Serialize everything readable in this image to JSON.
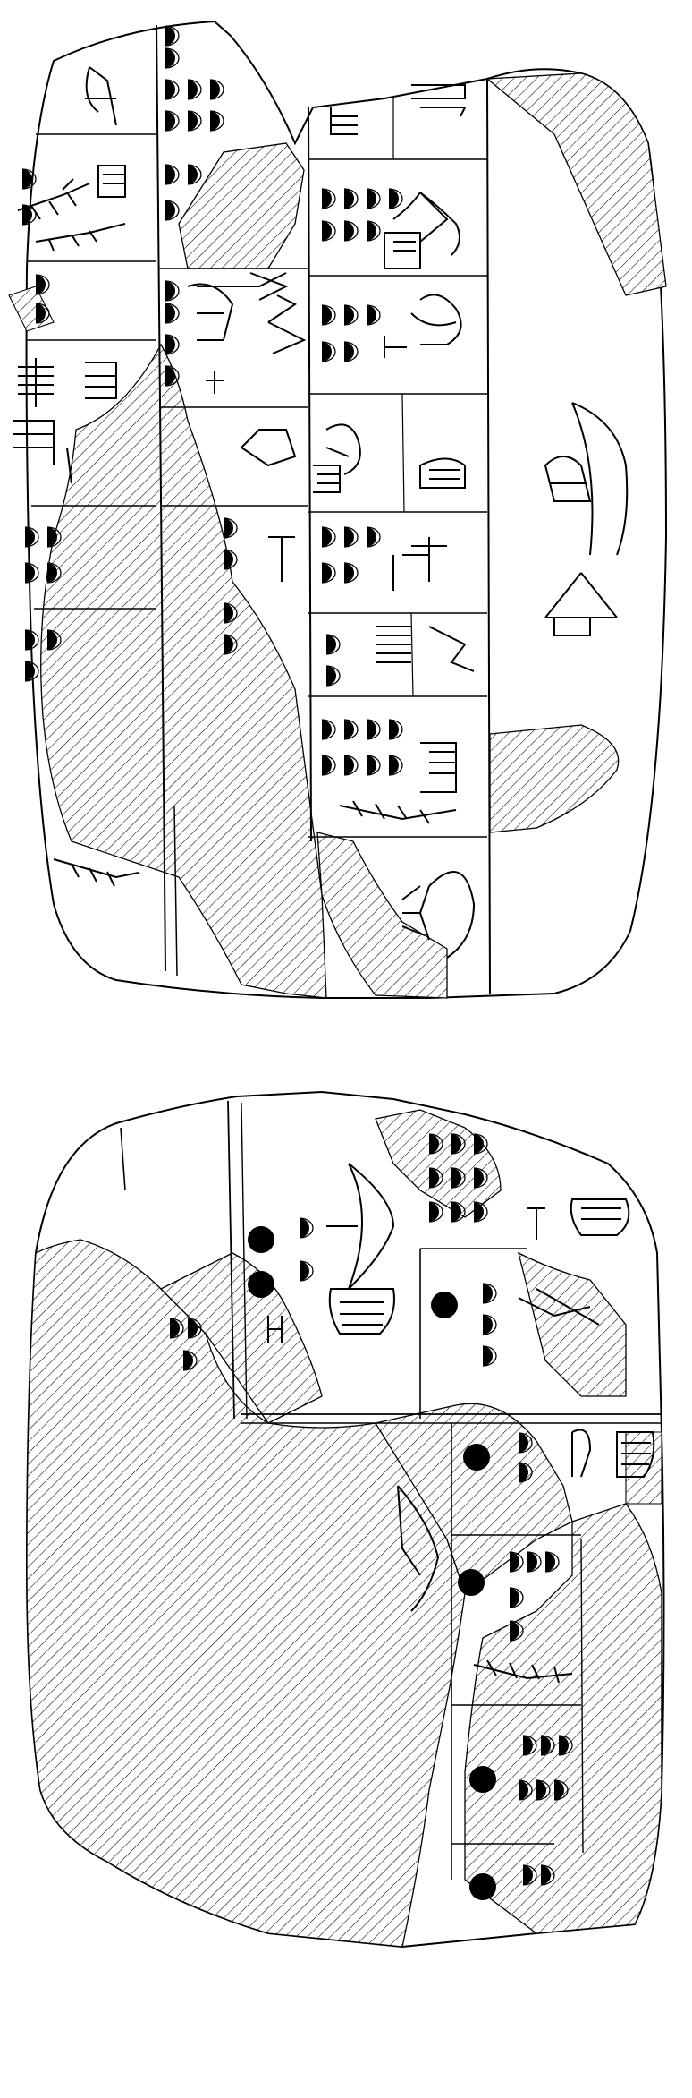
{
  "figure": {
    "kind": "line drawing of a two-sided inscribed clay tablet",
    "views": [
      "obverse",
      "reverse"
    ],
    "colors": {
      "background": "#ffffff",
      "ink": "#000000",
      "damage_hatch": "#000000"
    },
    "icons": {
      "damage": "diagonal-hatch",
      "numeral_small": "half-disc-d-shape",
      "numeral_large": "filled-circle",
      "sign": "cuneiform-sign"
    }
  }
}
